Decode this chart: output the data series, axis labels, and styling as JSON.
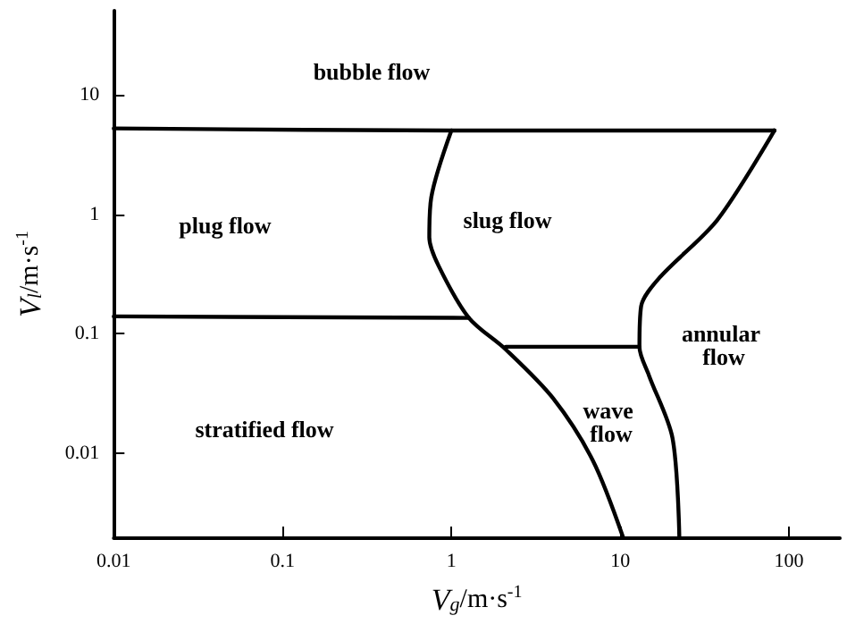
{
  "chart_data": {
    "type": "line",
    "xlabel": "V$_{g}$/m·s$^{-1}$",
    "ylabel": "V$_{l}$/m·s$^{-1}$",
    "log": "xy",
    "grid": false,
    "marker": "none",
    "line_style": "solid",
    "xlim": [
      0.01,
      200
    ],
    "xticks": [
      0.01,
      0.1,
      1,
      10,
      100
    ],
    "ylim": [
      0.002,
      50
    ],
    "yticks": [
      0.01,
      0.1,
      1,
      10
    ],
    "series": [
      {
        "color": "#000000",
        "x": [
          0.01,
          1,
          82
        ],
        "values": [
          5.2,
          5.0,
          5.0
        ]
      },
      {
        "color": "#000000",
        "x": [
          1,
          0.76,
          0.74,
          0.84,
          1.27,
          2.1,
          4.0,
          6.9,
          10.4
        ],
        "values": [
          5.0,
          1.38,
          0.64,
          0.37,
          0.136,
          0.074,
          0.029,
          0.0087,
          0.002
        ]
      },
      {
        "color": "#000000",
        "x": [
          0.01,
          1.27
        ],
        "values": [
          0.14,
          0.136
        ]
      },
      {
        "color": "#000000",
        "x": [
          2.1,
          13
        ],
        "values": [
          0.078,
          0.078
        ]
      },
      {
        "color": "#000000",
        "x": [
          82,
          37.5,
          17.1,
          13.3,
          13,
          14.8,
          20.4,
          22.4
        ],
        "values": [
          5.0,
          0.89,
          0.295,
          0.17,
          0.078,
          0.045,
          0.0135,
          0.002
        ]
      }
    ],
    "annotations": [
      "bubble flow",
      "plug flow",
      "slug flow",
      "annular flow",
      "wave flow",
      "stratified flow"
    ]
  }
}
